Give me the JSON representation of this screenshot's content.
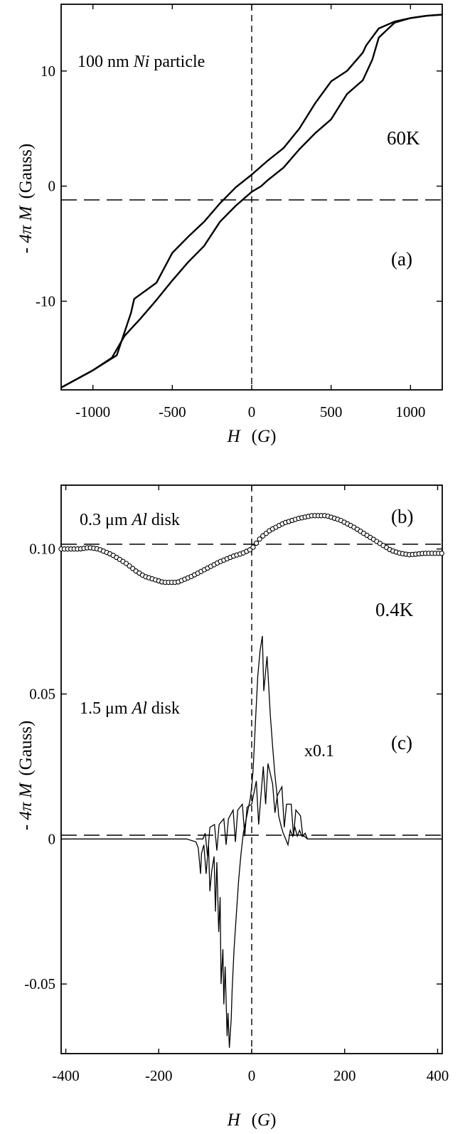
{
  "chart_data": [
    {
      "type": "line",
      "panel_label": "(a)",
      "temperature": "60K",
      "annotation": {
        "prefix": "100 nm ",
        "italic": "Ni",
        "suffix": " particle"
      },
      "xlabel": {
        "var": "H",
        "unit": "G"
      },
      "ylabel": {
        "prefix": "- ",
        "var": "4π M",
        "unit": "(Gauss)"
      },
      "xlim": [
        -1200,
        1200
      ],
      "ylim": [
        -17.7,
        15.8
      ],
      "xticks": [
        -1000,
        -500,
        0,
        500,
        1000
      ],
      "xtick_labels": [
        "-1000",
        "-500",
        "0",
        "500",
        "1000"
      ],
      "yticks": [
        -10,
        0,
        10
      ],
      "ytick_labels": [
        "-10",
        "0",
        "10"
      ],
      "reference_lines": {
        "x": 0,
        "y": 0,
        "style": "dashed"
      },
      "series": [
        {
          "x": [
            -1200,
            -1000,
            -850,
            -760,
            -740,
            -600,
            -500,
            -400,
            -300,
            -200,
            -100,
            0,
            100,
            200,
            300,
            400,
            500,
            600,
            700,
            720,
            800,
            900,
            1000,
            1100,
            1200
          ],
          "y": [
            -17.5,
            -16.0,
            -14.7,
            -11.0,
            -9.8,
            -8.4,
            -5.8,
            -4.4,
            -3.1,
            -1.5,
            -0.1,
            1.0,
            2.2,
            3.3,
            5.0,
            7.2,
            9.1,
            10.0,
            11.6,
            12.2,
            13.7,
            14.3,
            14.6,
            14.8,
            14.9
          ]
        },
        {
          "x": [
            -1200,
            -1000,
            -880,
            -800,
            -700,
            -600,
            -500,
            -400,
            -300,
            -200,
            -100,
            0,
            60,
            100,
            200,
            300,
            400,
            500,
            600,
            700,
            760,
            800,
            900,
            1000,
            1100,
            1200
          ],
          "y": [
            -17.5,
            -16.0,
            -14.9,
            -13.0,
            -11.5,
            -9.9,
            -8.2,
            -6.6,
            -5.2,
            -3.1,
            -1.7,
            -0.5,
            0.0,
            0.5,
            1.6,
            3.2,
            4.6,
            5.8,
            8.0,
            9.2,
            11.0,
            12.9,
            14.2,
            14.6,
            14.8,
            14.9
          ]
        }
      ]
    },
    {
      "type": "line",
      "panels": [
        "(b)",
        "(c)"
      ],
      "temperature": "0.4K",
      "xlabel": {
        "var": "H",
        "unit": "G"
      },
      "ylabel": {
        "prefix": "- ",
        "var": "4π M",
        "unit": "(Gauss)"
      },
      "xlim": [
        -410,
        410
      ],
      "ylim": [
        -0.074,
        0.122
      ],
      "xticks": [
        -400,
        -200,
        0,
        200,
        400
      ],
      "xtick_labels": [
        "-400",
        "-200",
        "0",
        "200",
        "400"
      ],
      "yticks": [
        -0.05,
        0,
        0.05,
        0.1
      ],
      "ytick_labels": [
        "-0.05",
        "0",
        "0.05",
        "0.10"
      ],
      "reference_lines": {
        "x": 0,
        "y": [
          0,
          0.1
        ],
        "style": "dashed"
      },
      "series": [
        {
          "label": "(b)",
          "annotation": {
            "prefix": "0.3 μm ",
            "italic": "Al",
            "suffix": " disk"
          },
          "marker": "open-circle",
          "x": [
            -410,
            -370,
            -350,
            -330,
            -300,
            -270,
            -250,
            -230,
            -210,
            -190,
            -160,
            -130,
            -100,
            -70,
            -40,
            -20,
            0,
            20,
            40,
            70,
            100,
            130,
            160,
            190,
            220,
            250,
            280,
            300,
            320,
            340,
            370,
            410
          ],
          "y": [
            0.1,
            0.1,
            0.1005,
            0.1,
            0.098,
            0.095,
            0.0925,
            0.0905,
            0.0895,
            0.0885,
            0.0885,
            0.0905,
            0.093,
            0.0955,
            0.0975,
            0.0985,
            0.1,
            0.104,
            0.1065,
            0.109,
            0.1105,
            0.1115,
            0.1115,
            0.11,
            0.1075,
            0.1045,
            0.1015,
            0.0995,
            0.0985,
            0.098,
            0.0985,
            0.0985
          ]
        },
        {
          "label": "(c)",
          "annotation": {
            "prefix": "1.5 μm ",
            "italic": "Al",
            "suffix": " disk"
          },
          "scale_note": "x0.1",
          "x": [
            -400,
            -140,
            -120,
            -115,
            -110,
            -108,
            -103,
            -98,
            -93,
            -90,
            -86,
            -81,
            -78,
            -75,
            -71,
            -68,
            -66,
            -62,
            -60,
            -57,
            -53,
            -51,
            -48,
            -44,
            -42,
            -38,
            -33,
            -28,
            -23,
            -18,
            -13,
            -8,
            -3,
            0,
            3,
            8,
            13,
            18,
            23,
            26,
            33,
            40,
            45,
            50,
            54,
            58,
            64,
            68,
            73,
            78,
            83,
            88,
            93,
            98,
            103,
            108,
            113,
            120,
            200,
            400
          ],
          "y": [
            0,
            0,
            -0.001,
            -0.003,
            -0.012,
            -0.005,
            -0.002,
            -0.012,
            -0.002,
            -0.018,
            -0.011,
            -0.006,
            -0.025,
            -0.008,
            -0.032,
            -0.02,
            -0.05,
            -0.038,
            -0.057,
            -0.044,
            -0.068,
            -0.06,
            -0.072,
            -0.062,
            -0.052,
            -0.038,
            -0.026,
            -0.014,
            -0.005,
            0.002,
            0.006,
            0.01,
            0.014,
            0.018,
            0.024,
            0.04,
            0.056,
            0.065,
            0.07,
            0.051,
            0.063,
            0.043,
            0.032,
            0.022,
            0.016,
            0.008,
            0.004,
            0.002,
            0,
            -0.002,
            0.003,
            0.001,
            0.004,
            0.001,
            0.003,
            0.001,
            0.001,
            0,
            0,
            0
          ]
        },
        {
          "label": "(c) lower branch",
          "x": [
            -120,
            -105,
            -100,
            -95,
            -90,
            -80,
            -75,
            -70,
            -60,
            -55,
            -50,
            -40,
            -35,
            -30,
            -20,
            -15,
            -10,
            0,
            10,
            15,
            25,
            30,
            35,
            45,
            50,
            55,
            65,
            70,
            75,
            85,
            90,
            95,
            105,
            110,
            115,
            120
          ],
          "y": [
            0,
            0,
            0.002,
            -0.006,
            0.004,
            0.005,
            -0.004,
            0.005,
            0.007,
            -0.002,
            0.007,
            0.01,
            -0.001,
            0.01,
            0.012,
            0.001,
            0.011,
            0.012,
            0.02,
            0.005,
            0.025,
            0.012,
            0.026,
            0.019,
            0.009,
            0.015,
            0.018,
            0.004,
            0.012,
            0.012,
            0.001,
            0.01,
            0.008,
            0.001,
            0.002,
            0
          ]
        }
      ]
    }
  ]
}
